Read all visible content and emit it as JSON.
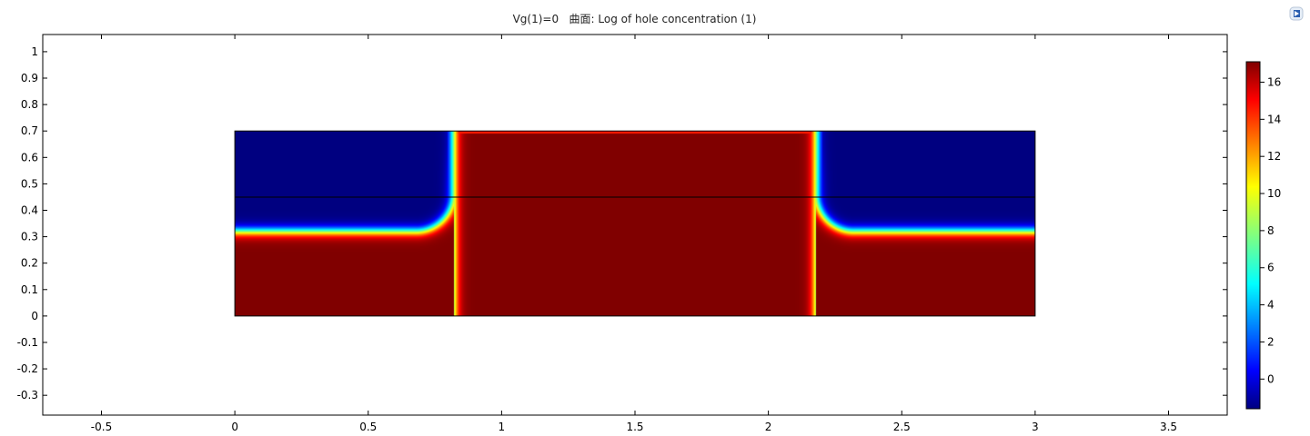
{
  "title": "Vg(1)=0   曲面: Log of hole concentration (1)",
  "chart_data": {
    "type": "heatmap",
    "title": "Vg(1)=0   曲面: Log of hole concentration (1)",
    "quantity": "Log of hole concentration (1)",
    "parameter": "Vg(1)=0",
    "colormap": "jet",
    "xlim": [
      -0.72,
      3.72
    ],
    "ylim": [
      -0.375,
      1.065
    ],
    "x_ticks": [
      -0.5,
      0,
      0.5,
      1,
      1.5,
      2,
      2.5,
      3,
      3.5
    ],
    "x_tick_labels": [
      "-0.5",
      "0",
      "0.5",
      "1",
      "1.5",
      "2",
      "2.5",
      "3",
      "3.5"
    ],
    "y_ticks": [
      1,
      0.9,
      0.8,
      0.7,
      0.6,
      0.5,
      0.4,
      0.3,
      0.2,
      0.1,
      0,
      -0.1,
      -0.2,
      -0.3
    ],
    "y_tick_labels": [
      "1",
      "0.9",
      "0.8",
      "0.7",
      "0.6",
      "0.5",
      "0.4",
      "0.3",
      "0.2",
      "0.1",
      "0",
      "-0.1",
      "-0.2",
      "-0.3"
    ],
    "domain": {
      "x": [
        0,
        3
      ],
      "y": [
        0,
        0.7
      ],
      "interface_y": 0.45
    },
    "field": {
      "high_value": 17.1,
      "low_value": -1.6,
      "depletion_boundary_y": 0.32,
      "left_well_edge_x": 0.82,
      "right_well_edge_x": 2.18,
      "well_top_y": 0.69
    },
    "colorbar": {
      "range": [
        -1.6,
        17.1
      ],
      "ticks": [
        16,
        14,
        12,
        10,
        8,
        6,
        4,
        2,
        0
      ],
      "tick_labels": [
        "16",
        "14",
        "12",
        "10",
        "8",
        "6",
        "4",
        "2",
        "0"
      ]
    }
  }
}
